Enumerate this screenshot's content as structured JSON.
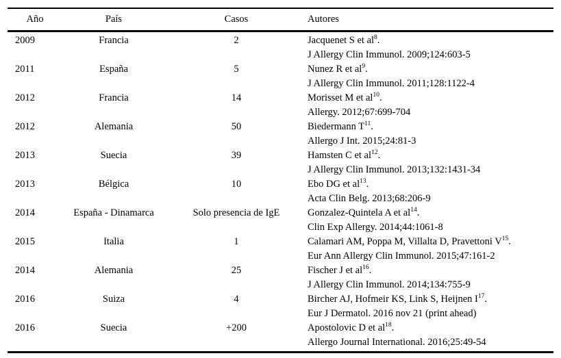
{
  "table": {
    "columns": [
      "Año",
      "País",
      "Casos",
      "Autores"
    ],
    "rows": [
      {
        "year": "2009",
        "country": "Francia",
        "cases": "2",
        "author": "Jacquenet S et al",
        "ref": "8",
        "after_ref": ".",
        "journal": "J Allergy Clin Immunol. 2009;124:603-5"
      },
      {
        "year": "2011",
        "country": "España",
        "cases": "5",
        "author": "Nunez R et al",
        "ref": "9",
        "after_ref": ".",
        "journal": "J Allergy Clin Immunol. 2011;128:1122-4"
      },
      {
        "year": "2012",
        "country": "Francia",
        "cases": "14",
        "author": "Morisset M et al",
        "ref": "10",
        "after_ref": ".",
        "journal": "Allergy. 2012;67:699-704"
      },
      {
        "year": "2012",
        "country": "Alemania",
        "cases": "50",
        "author": "Biedermann T",
        "ref": "11",
        "after_ref": ".",
        "journal": "Allergo J Int. 2015;24:81-3"
      },
      {
        "year": "2013",
        "country": "Suecia",
        "cases": "39",
        "author": "Hamsten C et al",
        "ref": "12",
        "after_ref": ".",
        "journal": "J Allergy Clin Immunol. 2013;132:1431-34"
      },
      {
        "year": "2013",
        "country": "Bélgica",
        "cases": "10",
        "author": "Ebo DG et al",
        "ref": "13",
        "after_ref": ".",
        "journal": "Acta Clin Belg. 2013;68:206-9"
      },
      {
        "year": "2014",
        "country": "España - Dinamarca",
        "cases": "Solo presencia de IgE",
        "author": "Gonzalez-Quintela A et al",
        "ref": "14",
        "after_ref": ".",
        "journal": "Clin Exp Allergy. 2014;44:1061-8"
      },
      {
        "year": "2015",
        "country": "Italia",
        "cases": "1",
        "author": "Calamari AM, Poppa M, Villalta D, Pravettoni V",
        "ref": "15",
        "after_ref": ".",
        "journal": "Eur Ann Allergy Clin Immunol. 2015;47:161-2"
      },
      {
        "year": "2014",
        "country": "Alemania",
        "cases": "25",
        "author": "Fischer J et al",
        "ref": "16",
        "after_ref": ".",
        "journal": "J Allergy Clin Immunol. 2014;134:755-9"
      },
      {
        "year": "2016",
        "country": "Suiza",
        "cases": "4",
        "author": "Bircher AJ, Hofmeir KS, Link S, Heijnen I",
        "ref": "17",
        "after_ref": ".",
        "journal": "Eur J Dermatol. 2016 nov 21 (print ahead)"
      },
      {
        "year": "2016",
        "country": "Suecia",
        "cases": "+200",
        "author": "Apostolovic D et al",
        "ref": "18",
        "after_ref": ".",
        "journal": "Allergo Journal International. 2016;25:49-54"
      }
    ]
  },
  "colors": {
    "text": "#000000",
    "border": "#000000",
    "background": "#ffffff"
  }
}
